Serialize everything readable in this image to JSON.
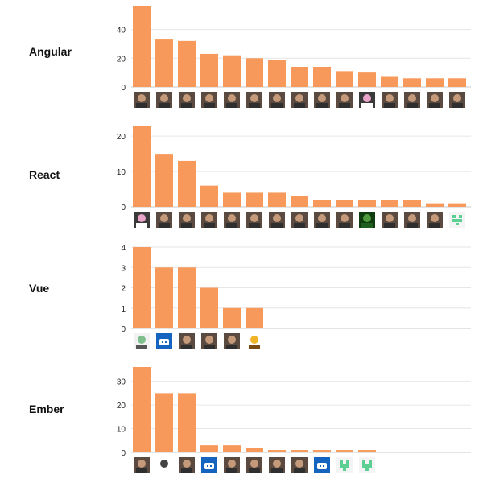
{
  "colors": {
    "bar": "#f7995a",
    "grid": "#e6e6e6",
    "axis": "#c8c8c8",
    "tick_text": "#222222",
    "label_text": "#111111"
  },
  "chart_data": [
    {
      "type": "bar",
      "title": "Angular",
      "xlabel": "",
      "ylabel": "",
      "yticks": [
        0,
        20,
        40
      ],
      "ylim": [
        0,
        56
      ],
      "values": [
        56,
        33,
        32,
        23,
        22,
        20,
        19,
        14,
        14,
        11,
        10,
        7,
        6,
        6,
        6
      ],
      "avatars": [
        "person-avatar",
        "person-avatar",
        "person-avatar",
        "person-avatar",
        "person-avatar",
        "person-avatar",
        "person-avatar",
        "person-avatar",
        "person-avatar",
        "person-avatar",
        "cartoon-avatar",
        "person-avatar",
        "person-avatar",
        "person-avatar",
        "person-avatar"
      ]
    },
    {
      "type": "bar",
      "title": "React",
      "xlabel": "",
      "ylabel": "",
      "yticks": [
        0,
        10,
        20
      ],
      "ylim": [
        0,
        23
      ],
      "values": [
        23,
        15,
        13,
        6,
        4,
        4,
        4,
        3,
        2,
        2,
        2,
        2,
        2,
        1,
        1
      ],
      "avatars": [
        "cartoon-avatar",
        "person-avatar",
        "person-avatar",
        "person-avatar",
        "person-avatar",
        "person-avatar",
        "person-avatar",
        "person-avatar",
        "person-avatar",
        "person-avatar",
        "leaf-avatar",
        "person-avatar",
        "person-avatar",
        "person-avatar",
        "identicon-avatar"
      ]
    },
    {
      "type": "bar",
      "title": "Vue",
      "xlabel": "",
      "ylabel": "",
      "yticks": [
        0,
        1,
        2,
        3,
        4
      ],
      "ylim": [
        0,
        4
      ],
      "values": [
        4,
        3,
        3,
        2,
        1,
        1
      ],
      "avatars": [
        "mascot-avatar",
        "bot-avatar",
        "person-avatar",
        "person-avatar",
        "person-avatar",
        "cat-avatar"
      ]
    },
    {
      "type": "bar",
      "title": "Ember",
      "xlabel": "",
      "ylabel": "",
      "yticks": [
        0,
        10,
        20,
        30
      ],
      "ylim": [
        0,
        36
      ],
      "values": [
        36,
        25,
        25,
        3,
        3,
        2,
        1,
        1,
        1,
        1,
        1
      ],
      "avatars": [
        "person-avatar",
        "knot-avatar",
        "person-avatar",
        "bot-avatar",
        "person-avatar",
        "person-avatar",
        "person-avatar",
        "person-avatar",
        "bot-avatar",
        "identicon-avatar",
        "identicon-avatar"
      ]
    }
  ]
}
